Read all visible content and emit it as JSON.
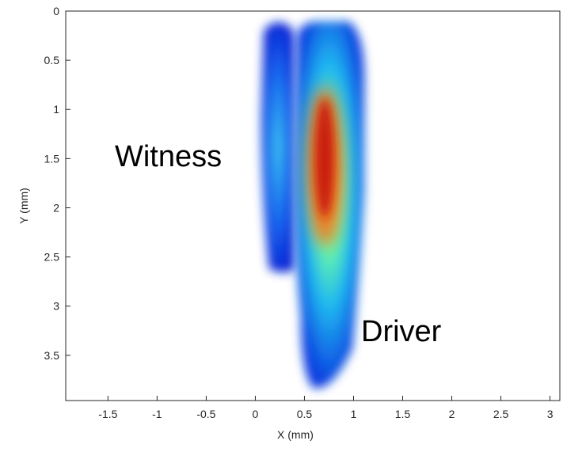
{
  "chart_data": {
    "type": "image",
    "xlabel": "X (mm)",
    "ylabel": "Y (mm)",
    "xlim": [
      -1.93,
      3.1
    ],
    "ylim": [
      0,
      3.96
    ],
    "y_reversed": true,
    "xticks": [
      -1.5,
      -1,
      -0.5,
      0,
      0.5,
      1,
      1.5,
      2,
      2.5,
      3
    ],
    "yticks": [
      0,
      0.5,
      1,
      1.5,
      2,
      2.5,
      3,
      3.5
    ],
    "annotations": [
      "Witness",
      "Driver"
    ]
  }
}
